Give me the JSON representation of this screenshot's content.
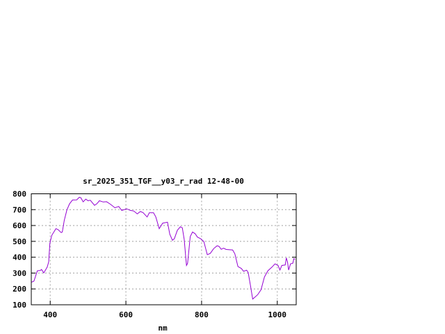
{
  "chart_data": {
    "type": "line",
    "title": "sr_2025_351_TGF__y03_r_rad 12-48-00",
    "xlabel": "nm",
    "ylabel": "",
    "xlim": [
      350,
      1050
    ],
    "ylim": [
      100,
      800
    ],
    "xticks": [
      400,
      600,
      800,
      1000
    ],
    "yticks": [
      100,
      200,
      300,
      400,
      500,
      600,
      700,
      800
    ],
    "grid": true,
    "line_color": "#9400d3",
    "series": [
      {
        "x": [
          351,
          357,
          366,
          374,
          377,
          383,
          392,
          396,
          399,
          404,
          415,
          421,
          429,
          432,
          437,
          444,
          451,
          459,
          470,
          477,
          481,
          487,
          494,
          500,
          506,
          517,
          523,
          530,
          540,
          549,
          559,
          571,
          581,
          589,
          602,
          612,
          621,
          630,
          638,
          645,
          656,
          662,
          673,
          679,
          688,
          697,
          710,
          716,
          723,
          728,
          736,
          744,
          749,
          754,
          760,
          763,
          770,
          776,
          783,
          789,
          798,
          806,
          815,
          823,
          832,
          841,
          846,
          852,
          858,
          865,
          882,
          888,
          896,
          905,
          911,
          919,
          923,
          929,
          935,
          940,
          948,
          957,
          966,
          975,
          986,
          994,
          1002,
          1007,
          1012,
          1021,
          1024,
          1027,
          1030,
          1035,
          1041,
          1044,
          1047
        ],
        "y": [
          243,
          249,
          314,
          317,
          323,
          301,
          338,
          370,
          486,
          537,
          580,
          574,
          555,
          559,
          632,
          698,
          737,
          761,
          762,
          778,
          775,
          749,
          766,
          756,
          759,
          727,
          737,
          756,
          748,
          750,
          734,
          712,
          720,
          695,
          705,
          695,
          691,
          673,
          688,
          682,
          654,
          680,
          680,
          654,
          580,
          615,
          621,
          545,
          507,
          516,
          570,
          592,
          586,
          513,
          348,
          362,
          530,
          559,
          548,
          527,
          516,
          498,
          416,
          424,
          454,
          472,
          468,
          450,
          457,
          449,
          446,
          421,
          341,
          329,
          311,
          318,
          304,
          224,
          136,
          146,
          163,
          195,
          275,
          314,
          338,
          358,
          348,
          319,
          348,
          351,
          396,
          370,
          319,
          358,
          362,
          391,
          387
        ]
      }
    ]
  }
}
